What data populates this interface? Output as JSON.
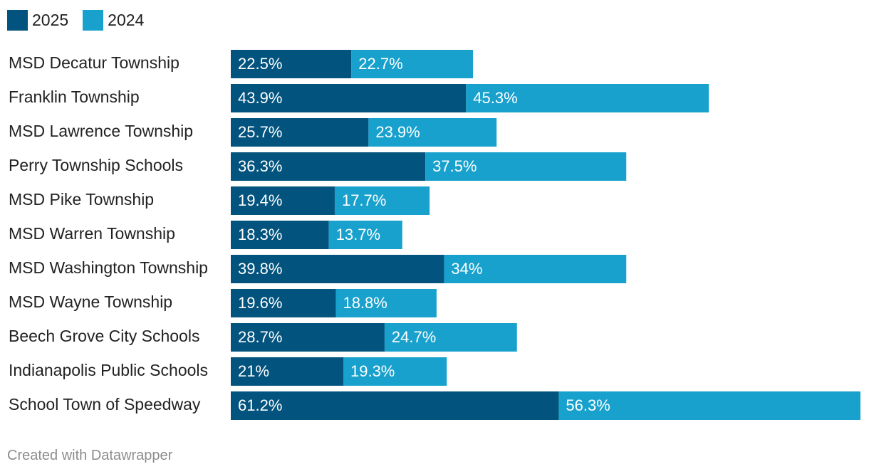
{
  "chart_data": {
    "type": "bar",
    "orientation": "horizontal",
    "stacked": true,
    "categories": [
      "MSD Decatur Township",
      "Franklin Township",
      "MSD Lawrence Township",
      "Perry Township Schools",
      "MSD Pike Township",
      "MSD Warren Township",
      "MSD Washington Township",
      "MSD Wayne Township",
      "Beech Grove City Schools",
      "Indianapolis Public Schools",
      "School Town of Speedway"
    ],
    "series": [
      {
        "name": "2025",
        "color": "#02537d",
        "values": [
          22.5,
          43.9,
          25.7,
          36.3,
          19.4,
          18.3,
          39.8,
          19.6,
          28.7,
          21,
          61.2
        ],
        "labels": [
          "22.5%",
          "43.9%",
          "25.7%",
          "36.3%",
          "19.4%",
          "18.3%",
          "39.8%",
          "19.6%",
          "28.7%",
          "21%",
          "61.2%"
        ]
      },
      {
        "name": "2024",
        "color": "#18a1cd",
        "values": [
          22.7,
          45.3,
          23.9,
          37.5,
          17.7,
          13.7,
          34,
          18.8,
          24.7,
          19.3,
          56.3
        ],
        "labels": [
          "22.7%",
          "45.3%",
          "23.9%",
          "37.5%",
          "17.7%",
          "13.7%",
          "34%",
          "18.8%",
          "24.7%",
          "19.3%",
          "56.3%"
        ]
      }
    ],
    "legend_position": "top-left",
    "grid": false
  },
  "footer": {
    "credit": "Created with Datawrapper"
  }
}
